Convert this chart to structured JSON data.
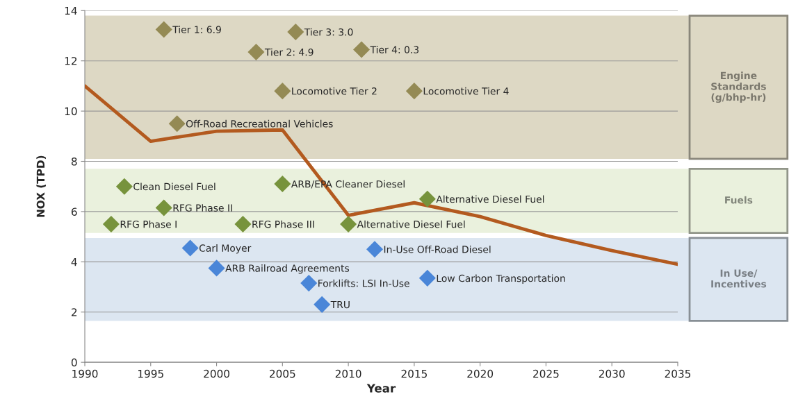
{
  "chart_data": {
    "type": "line",
    "xlabel": "Year",
    "ylabel": "NOX (TPD)",
    "xlim": [
      1990,
      2035
    ],
    "xticks": [
      1990,
      1995,
      2000,
      2005,
      2010,
      2015,
      2020,
      2025,
      2030,
      2035
    ],
    "ylim": [
      0,
      14
    ],
    "yticks": [
      0,
      2,
      4,
      6,
      8,
      10,
      12,
      14
    ],
    "grid": "y",
    "series": [
      {
        "color": "#b35a1f",
        "x": [
          1990,
          1995,
          2000,
          2005,
          2010,
          2015,
          2020,
          2025,
          2030,
          2035
        ],
        "values": [
          11,
          8.8,
          9.2,
          9.25,
          5.85,
          6.35,
          5.8,
          5.05,
          4.45,
          3.9
        ]
      },
      {
        "type": "scatter",
        "marker": "diamond",
        "color": "#948a54",
        "x": [
          1996,
          2006,
          2003,
          2011,
          2005,
          2015,
          1997
        ],
        "values": [
          13.25,
          13.15,
          12.35,
          12.45,
          10.8,
          10.8,
          9.5
        ]
      },
      {
        "type": "scatter",
        "marker": "diamond",
        "color": "#77933c",
        "x": [
          1993,
          1996,
          1992,
          2002,
          2005,
          2010,
          2016
        ],
        "values": [
          7.0,
          6.15,
          5.5,
          5.5,
          7.1,
          5.5,
          6.5
        ]
      },
      {
        "type": "scatter",
        "marker": "diamond",
        "color": "#4a86d8",
        "x": [
          1998,
          2000,
          2007,
          2008,
          2012,
          2016
        ],
        "values": [
          4.55,
          3.75,
          3.15,
          2.3,
          4.5,
          3.35
        ]
      }
    ],
    "annotations": [
      {
        "text": "Tier 1: 6.9",
        "x": 1996,
        "y": 13.25
      },
      {
        "text": "Tier 3: 3.0",
        "x": 2006,
        "y": 13.15
      },
      {
        "text": "Tier 2: 4.9",
        "x": 2003,
        "y": 12.35
      },
      {
        "text": "Tier 4: 0.3",
        "x": 2011,
        "y": 12.45
      },
      {
        "text": "Locomotive Tier 2",
        "x": 2005,
        "y": 10.8
      },
      {
        "text": "Locomotive Tier 4",
        "x": 2015,
        "y": 10.8
      },
      {
        "text": "Off-Road Recreational Vehicles",
        "x": 1997,
        "y": 9.5
      },
      {
        "text": "Clean Diesel Fuel",
        "x": 1993,
        "y": 7.0
      },
      {
        "text": "RFG Phase II",
        "x": 1996,
        "y": 6.15
      },
      {
        "text": "RFG Phase I",
        "x": 1992,
        "y": 5.5
      },
      {
        "text": "RFG Phase III",
        "x": 2002,
        "y": 5.5
      },
      {
        "text": "ARB/EPA Cleaner Diesel",
        "x": 2005,
        "y": 7.1
      },
      {
        "text": "Alternative Diesel Fuel",
        "x": 2010,
        "y": 5.5
      },
      {
        "text": "Alternative Diesel Fuel",
        "x": 2016,
        "y": 6.5
      },
      {
        "text": "Carl Moyer",
        "x": 1998,
        "y": 4.55
      },
      {
        "text": "ARB Railroad Agreements",
        "x": 2000,
        "y": 3.75
      },
      {
        "text": "Forklifts: LSI In-Use",
        "x": 2007,
        "y": 3.15
      },
      {
        "text": "TRU",
        "x": 2008,
        "y": 2.3
      },
      {
        "text": "In-Use Off-Road Diesel",
        "x": 2012,
        "y": 4.5
      },
      {
        "text": "Low Carbon Transportation",
        "x": 2016,
        "y": 3.35
      }
    ],
    "bands": [
      {
        "axis": "y",
        "from": 8.1,
        "to": 13.8,
        "label": "Engine\nStandards\n(g/bhp-hr)",
        "color": "#ddd8c4"
      },
      {
        "axis": "y",
        "from": 5.15,
        "to": 7.7,
        "label": "Fuels",
        "color": "#eaf1dd"
      },
      {
        "axis": "y",
        "from": 1.65,
        "to": 4.95,
        "label": "In Use/\nIncentives",
        "color": "#dce6f1"
      }
    ]
  }
}
